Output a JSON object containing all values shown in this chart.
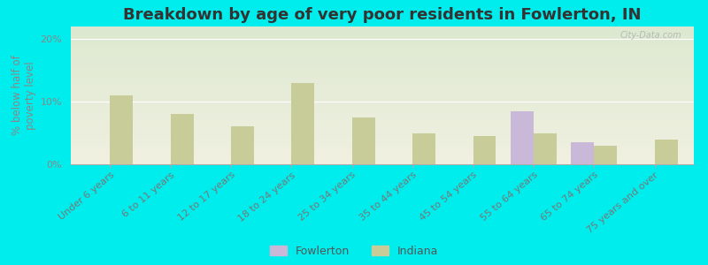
{
  "title": "Breakdown by age of very poor residents in Fowlerton, IN",
  "ylabel": "% below half of\npoverty level",
  "categories": [
    "Under 6 years",
    "6 to 11 years",
    "12 to 17 years",
    "18 to 24 years",
    "25 to 34 years",
    "35 to 44 years",
    "45 to 54 years",
    "55 to 64 years",
    "65 to 74 years",
    "75 years and over"
  ],
  "fowlerton_values": [
    0,
    0,
    0,
    0,
    0,
    0,
    0,
    8.5,
    3.5,
    0
  ],
  "indiana_values": [
    11.0,
    8.0,
    6.0,
    13.0,
    7.5,
    5.0,
    4.5,
    5.0,
    3.0,
    4.0
  ],
  "fowlerton_color": "#c9b8d8",
  "indiana_color": "#c8cc99",
  "background_outer": "#00eded",
  "background_plot_top": "#dce8d0",
  "background_plot_bottom": "#f0f0e0",
  "ylim": [
    0,
    22
  ],
  "yticks": [
    0,
    10,
    20
  ],
  "ytick_labels": [
    "0%",
    "10%",
    "20%"
  ],
  "bar_width": 0.38,
  "title_fontsize": 13,
  "axis_label_fontsize": 8.5,
  "tick_fontsize": 8,
  "legend_fontsize": 9,
  "watermark": "City-Data.com"
}
